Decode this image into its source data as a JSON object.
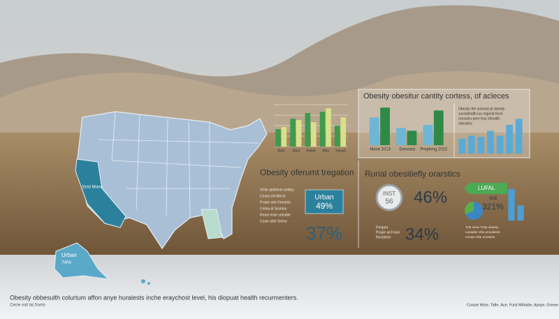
{
  "top_panel": {
    "title": "Obesity obesitur cantity cortess, of acleces",
    "note_lines": [
      "Obesity the somwat gl obesity",
      "sundafealth ow regienti fricie",
      "oreastes peer fray ohlealth",
      "obesities"
    ]
  },
  "left_chart": {
    "type": "bar",
    "categories": [
      "Bani",
      "Mica",
      "Raleb",
      "Wan",
      "Sanah"
    ],
    "series": [
      {
        "color": "#3f9a4c",
        "values": [
          25,
          40,
          48,
          50,
          30
        ]
      },
      {
        "color": "#d9e08a",
        "values": [
          28,
          38,
          35,
          55,
          42
        ]
      }
    ],
    "ylim": [
      0,
      60
    ],
    "yticks": [
      0,
      15,
      30,
      45,
      60
    ],
    "grid": true
  },
  "mid_chart": {
    "type": "bar",
    "categories": [
      "Mase 2013",
      "Dressed",
      "Prephing 2022"
    ],
    "series": [
      {
        "color": "#6fb6d6",
        "values": [
          48,
          30,
          35
        ]
      },
      {
        "color": "#2f8a48",
        "values": [
          65,
          25,
          60
        ]
      }
    ],
    "ylim": [
      0,
      70
    ]
  },
  "right_chart": {
    "type": "bar",
    "series": [
      {
        "color": "#5aaad6",
        "values": [
          25,
          30,
          28,
          38,
          30,
          48,
          58
        ]
      }
    ],
    "ylim": [
      0,
      70
    ]
  },
  "urban": {
    "title": "Obesity oferumt tregation",
    "box_label": "Urban",
    "box_value": "49%",
    "big_value": "37%",
    "note_lines": [
      "Vrhie atefieinie oeitiey",
      "Ceses inti Mecie",
      "Prasie atie Oreshrin",
      "Ceties-iti Sisintes",
      "Reast eisie urtealite",
      "Cosie atite Sinine"
    ]
  },
  "rural": {
    "title": "Rurial obesitiefly orarstics",
    "circle_label": "INST",
    "circle_value": "56",
    "value_a": "46%",
    "value_b": "34%",
    "note_lines": [
      "Peripeit",
      "Prasie ail Fosie",
      "Recidenti"
    ]
  },
  "rural_right": {
    "arrow_label": "LUFAL",
    "label": "out",
    "value": "321%",
    "mini": {
      "type": "bar",
      "series": [
        {
          "color": "#4a9fd6",
          "values": [
            50,
            24
          ]
        }
      ],
      "ylim": [
        0,
        60
      ]
    },
    "note_lines": [
      "Tole esise Trate obeesy",
      "Lareplite Vihe prosidents",
      "Cessie nihe ureatiete"
    ]
  },
  "map": {
    "california_label": "Erist Mone",
    "alaska_label": "Urban",
    "alaska_value": "74%"
  },
  "footer": {
    "text": "Obesity obbesulth colurtum affon anye huralests inche eraychost level, his diopuat health recurmenters.",
    "sub": "Cecie vsit tal Sonts",
    "credits": "Coasie Wise, Tafie, Ace, Fuist Mihiatie, Ayope, Grewe"
  }
}
